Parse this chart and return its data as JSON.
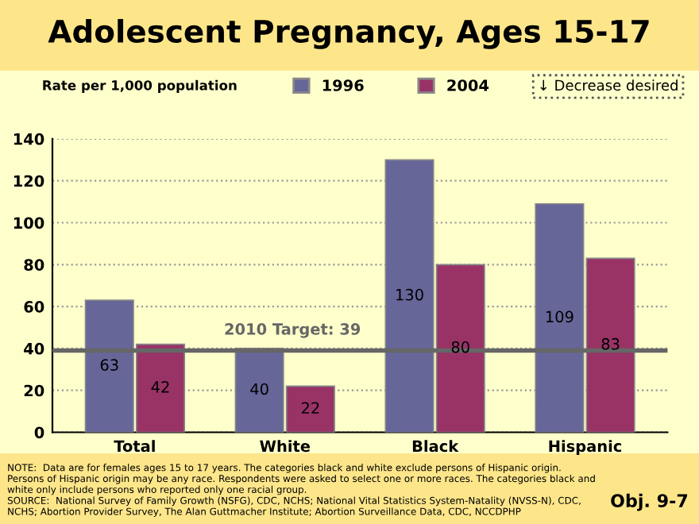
{
  "chart_data": {
    "type": "bar",
    "title": "Adolescent Pregnancy, Ages 15-17",
    "ylabel": "Rate per 1,000 population",
    "categories": [
      "Total",
      "White",
      "Black",
      "Hispanic"
    ],
    "series": [
      {
        "name": "1996",
        "color": "#666699",
        "values": [
          63,
          40,
          130,
          109
        ]
      },
      {
        "name": "2004",
        "color": "#993366",
        "values": [
          42,
          22,
          80,
          83
        ]
      }
    ],
    "ylim": [
      0,
      140
    ],
    "yticks": [
      0,
      20,
      40,
      60,
      80,
      100,
      120,
      140
    ],
    "grid": "y",
    "legend": "top",
    "data_labels": true,
    "ref_lines": [
      {
        "axis": "y",
        "value": 39,
        "label": "2010 Target: 39",
        "color": "#666666"
      }
    ],
    "annotations": [
      "↓ Decrease desired",
      "NOTE:  Data are for females ages 15 to 17 years. The categories black and white exclude persons of Hispanic origin. Persons of Hispanic origin may be any race. Respondents were asked to select one or more races. The categories black and white only include persons who reported only one racial group.\nSOURCE:  National Survey of Family Growth (NSFG), CDC, NCHS; National Vital Statistics System-Natality (NVSS-N), CDC, NCHS; Abortion Provider Survey, The Alan Guttmacher Institute; Abortion Surveillance Data, CDC, NCCDPHP",
      "Obj. 9-7"
    ]
  }
}
